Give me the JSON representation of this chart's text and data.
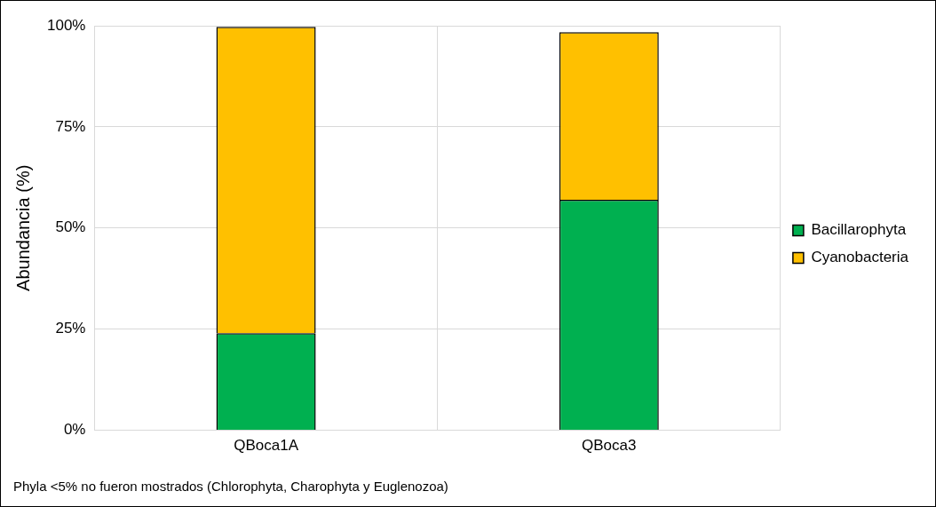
{
  "chart_data": {
    "type": "bar",
    "stacked": true,
    "categories": [
      "QBoca1A",
      "QBoca3"
    ],
    "series": [
      {
        "name": "Bacillarophyta",
        "color": "#00b050",
        "values": [
          24,
          57
        ]
      },
      {
        "name": "Cyanobacteria",
        "color": "#ffc000",
        "values": [
          75.7,
          41.4
        ]
      }
    ],
    "ylabel": "Abundancia (%)",
    "ylim": [
      0,
      100
    ],
    "yticks": [
      {
        "value": 0,
        "label": "0%"
      },
      {
        "value": 25,
        "label": "25%"
      },
      {
        "value": 50,
        "label": "50%"
      },
      {
        "value": 75,
        "label": "75%"
      },
      {
        "value": 100,
        "label": "100%"
      }
    ],
    "grid": true,
    "legend": "right",
    "annotations": [
      "Phyla <5% no fueron mostrados (Chlorophyta, Charophyta y Euglenozoa)"
    ]
  }
}
